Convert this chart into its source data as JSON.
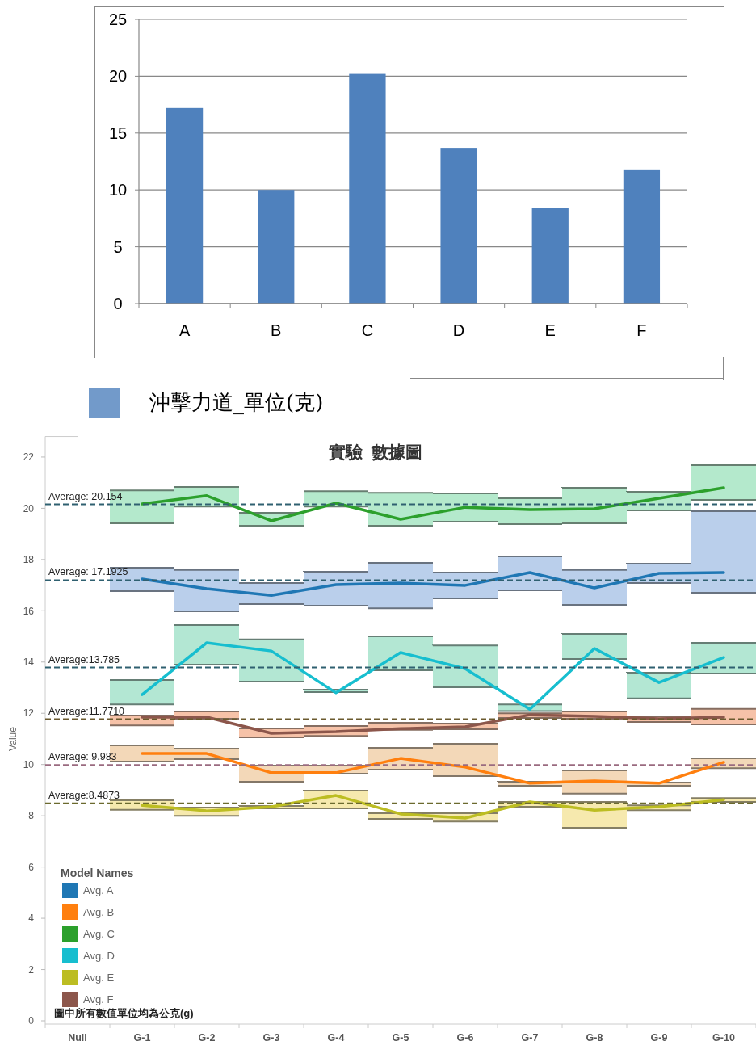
{
  "chart_data": [
    {
      "type": "bar",
      "categories": [
        "A",
        "B",
        "C",
        "D",
        "E",
        "F"
      ],
      "series": [
        {
          "name": "沖擊力道_單位(克)",
          "color": "#4f81bd",
          "values": [
            17.2,
            10,
            20.2,
            13.7,
            8.4,
            11.8
          ]
        }
      ],
      "ylim": [
        0,
        25
      ],
      "yticks": [
        0,
        5,
        10,
        15,
        20,
        25
      ],
      "grid": "y",
      "legend": "bottom"
    },
    {
      "type": "line",
      "title": "實驗_數據圖",
      "ylabel": "Value",
      "legend_title": "Model Names",
      "legend": "bottom left",
      "categories": [
        "Null",
        "G-1",
        "G-2",
        "G-3",
        "G-4",
        "G-5",
        "G-6",
        "G-7",
        "G-8",
        "G-9",
        "G-10"
      ],
      "ylim": [
        0,
        22.8
      ],
      "yticks": [
        0,
        2,
        4,
        6,
        8,
        10,
        12,
        14,
        16,
        18,
        20,
        22
      ],
      "line_style": "solid",
      "marker": "none",
      "annotations": [
        "圖中所有數值單位均為公克(g)"
      ],
      "ref_lines": [
        {
          "axis": "y",
          "value": 20.154,
          "label": "Average: 20.154",
          "color": "#2f6070",
          "line_style": "dashed"
        },
        {
          "axis": "y",
          "value": 17.1925,
          "label": "Average: 17.1925",
          "color": "#2f6070",
          "line_style": "dashed"
        },
        {
          "axis": "y",
          "value": 13.785,
          "label": "Average:13.785",
          "color": "#2f6070",
          "line_style": "dashed"
        },
        {
          "axis": "y",
          "value": 11.771,
          "label": "Average:11.7710",
          "color": "#6b5a2e",
          "line_style": "dashed"
        },
        {
          "axis": "y",
          "value": 9.983,
          "label": "Average: 9.983",
          "color": "#9a6b80",
          "line_style": "dashed"
        },
        {
          "axis": "y",
          "value": 8.4873,
          "label": "Average:8.4873",
          "color": "#6b6a2e",
          "line_style": "dashed"
        }
      ],
      "series": [
        {
          "type": "bar",
          "color": "#a8e6c4",
          "base": [
            null,
            19.41,
            20.07,
            19.32,
            20.07,
            19.32,
            19.48,
            19.38,
            19.41,
            19.92,
            20.33
          ],
          "values": [
            null,
            1.29,
            0.76,
            0.5,
            0.6,
            1.28,
            1.1,
            1.01,
            1.39,
            0.72,
            1.35
          ]
        },
        {
          "type": "bar",
          "color": "#aec7e8",
          "base": [
            null,
            16.77,
            15.98,
            16.26,
            16.2,
            16.1,
            16.48,
            16.8,
            16.23,
            17.08,
            16.7
          ],
          "values": [
            null,
            0.91,
            1.61,
            0.82,
            1.32,
            1.77,
            1.01,
            1.32,
            1.36,
            0.76,
            3.19
          ]
        },
        {
          "type": "bar",
          "color": "#a6e3cc",
          "base": [
            null,
            12.35,
            13.9,
            13.24,
            12.83,
            13.68,
            13.02,
            12.09,
            14.12,
            12.58,
            13.55
          ],
          "values": [
            null,
            0.95,
            1.54,
            1.64,
            0.09,
            1.32,
            1.63,
            0.26,
            0.98,
            1.0,
            1.2
          ]
        },
        {
          "type": "bar",
          "color": "#f5b89a",
          "base": [
            null,
            11.53,
            11.79,
            11.06,
            11.12,
            11.35,
            11.38,
            11.82,
            11.79,
            11.66,
            11.57
          ],
          "values": [
            null,
            0.38,
            0.28,
            0.35,
            0.38,
            0.28,
            0.22,
            0.18,
            0.28,
            0.22,
            0.6
          ]
        },
        {
          "type": "bar",
          "color": "#f2d2ac",
          "base": [
            null,
            10.12,
            10.21,
            9.33,
            9.64,
            9.8,
            9.55,
            9.17,
            8.86,
            9.17,
            9.86
          ],
          "values": [
            null,
            0.63,
            0.41,
            0.63,
            0.32,
            0.85,
            1.26,
            0.16,
            0.91,
            0.13,
            0.38
          ]
        },
        {
          "type": "bar",
          "color": "#f5e6a0",
          "base": [
            null,
            8.23,
            8.0,
            8.29,
            8.29,
            7.88,
            7.78,
            8.35,
            7.53,
            8.22,
            8.54
          ],
          "values": [
            null,
            0.37,
            0.32,
            0.09,
            0.69,
            0.22,
            0.32,
            0.19,
            1.01,
            0.19,
            0.15
          ]
        },
        {
          "name": "Avg. A",
          "color": "#1f77b4",
          "values": [
            null,
            17.24,
            16.86,
            16.6,
            17.02,
            17.08,
            16.99,
            17.49,
            16.89,
            17.46,
            17.49
          ]
        },
        {
          "name": "Avg. B",
          "color": "#ff7f0e",
          "values": [
            null,
            10.43,
            10.43,
            9.68,
            9.68,
            10.24,
            9.9,
            9.27,
            9.36,
            9.27,
            10.09
          ]
        },
        {
          "name": "Avg. C",
          "color": "#2ca02c",
          "values": [
            null,
            20.17,
            20.49,
            19.51,
            20.2,
            19.57,
            20.04,
            19.95,
            19.98,
            20.39,
            20.8
          ]
        },
        {
          "name": "Avg. D",
          "color": "#17becf",
          "values": [
            null,
            12.73,
            14.75,
            14.43,
            12.8,
            14.37,
            13.74,
            12.16,
            14.53,
            13.2,
            14.18
          ]
        },
        {
          "name": "Avg. E",
          "color": "#bcbd22",
          "values": [
            null,
            8.41,
            8.19,
            8.35,
            8.79,
            8.07,
            7.91,
            8.54,
            8.22,
            8.35,
            8.63
          ]
        },
        {
          "name": "Avg. F",
          "color": "#8c564b",
          "values": [
            null,
            11.85,
            11.85,
            11.22,
            11.28,
            11.4,
            11.47,
            11.94,
            11.88,
            11.79,
            11.85
          ]
        }
      ]
    }
  ]
}
